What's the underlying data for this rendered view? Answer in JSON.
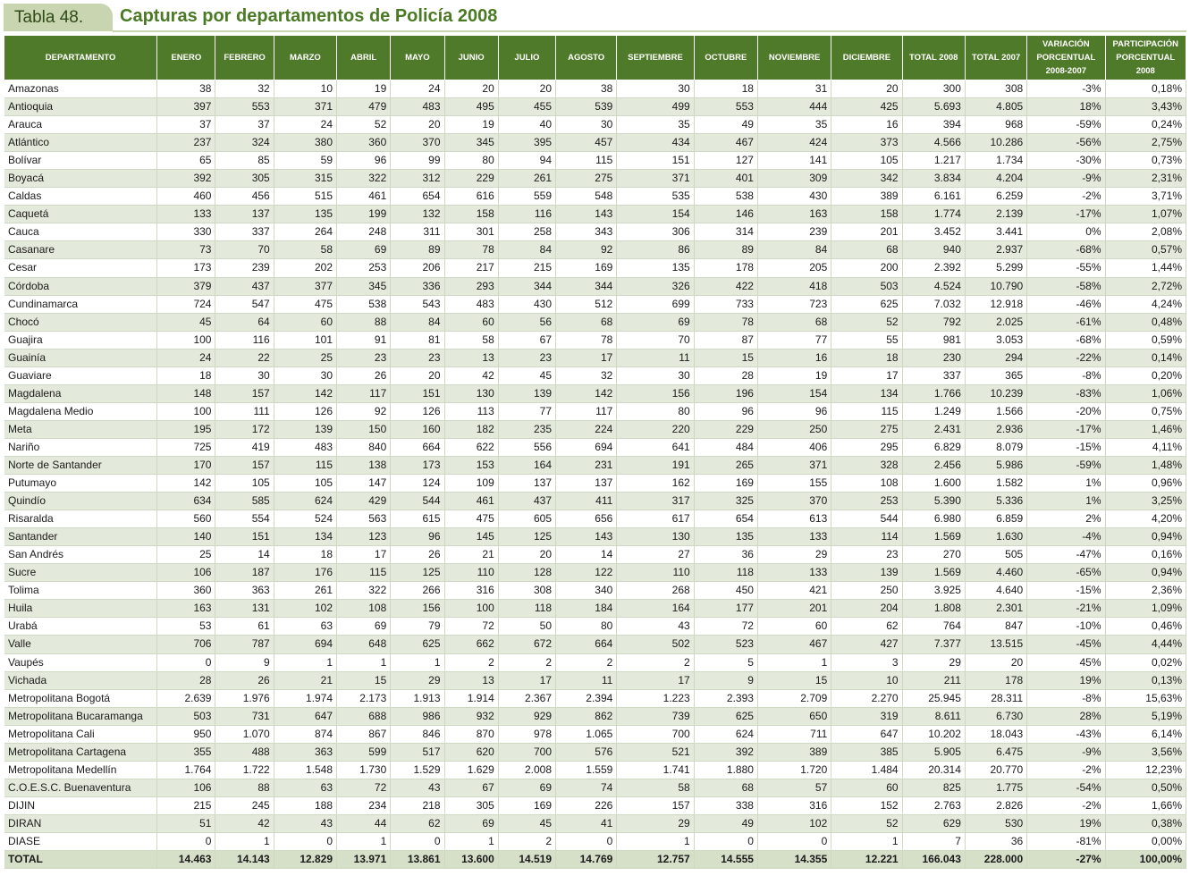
{
  "title": {
    "tag": "Tabla 48.",
    "text": "Capturas por departamentos de Policía 2008"
  },
  "columns": [
    "DEPARTAMENTO",
    "ENERO",
    "FEBRERO",
    "MARZO",
    "ABRIL",
    "MAYO",
    "JUNIO",
    "JULIO",
    "AGOSTO",
    "SEPTIEMBRE",
    "OCTUBRE",
    "NOVIEMBRE",
    "DICIEMBRE",
    "TOTAL 2008",
    "TOTAL 2007",
    "VARIACIÓN PORCENTUAL 2008-2007",
    "PARTICIPACIÓN PORCENTUAL 2008"
  ],
  "rows": [
    [
      "Amazonas",
      "38",
      "32",
      "10",
      "19",
      "24",
      "20",
      "20",
      "38",
      "30",
      "18",
      "31",
      "20",
      "300",
      "308",
      "-3%",
      "0,18%"
    ],
    [
      "Antioquia",
      "397",
      "553",
      "371",
      "479",
      "483",
      "495",
      "455",
      "539",
      "499",
      "553",
      "444",
      "425",
      "5.693",
      "4.805",
      "18%",
      "3,43%"
    ],
    [
      "Arauca",
      "37",
      "37",
      "24",
      "52",
      "20",
      "19",
      "40",
      "30",
      "35",
      "49",
      "35",
      "16",
      "394",
      "968",
      "-59%",
      "0,24%"
    ],
    [
      "Atlántico",
      "237",
      "324",
      "380",
      "360",
      "370",
      "345",
      "395",
      "457",
      "434",
      "467",
      "424",
      "373",
      "4.566",
      "10.286",
      "-56%",
      "2,75%"
    ],
    [
      "Bolívar",
      "65",
      "85",
      "59",
      "96",
      "99",
      "80",
      "94",
      "115",
      "151",
      "127",
      "141",
      "105",
      "1.217",
      "1.734",
      "-30%",
      "0,73%"
    ],
    [
      "Boyacá",
      "392",
      "305",
      "315",
      "322",
      "312",
      "229",
      "261",
      "275",
      "371",
      "401",
      "309",
      "342",
      "3.834",
      "4.204",
      "-9%",
      "2,31%"
    ],
    [
      "Caldas",
      "460",
      "456",
      "515",
      "461",
      "654",
      "616",
      "559",
      "548",
      "535",
      "538",
      "430",
      "389",
      "6.161",
      "6.259",
      "-2%",
      "3,71%"
    ],
    [
      "Caquetá",
      "133",
      "137",
      "135",
      "199",
      "132",
      "158",
      "116",
      "143",
      "154",
      "146",
      "163",
      "158",
      "1.774",
      "2.139",
      "-17%",
      "1,07%"
    ],
    [
      "Cauca",
      "330",
      "337",
      "264",
      "248",
      "311",
      "301",
      "258",
      "343",
      "306",
      "314",
      "239",
      "201",
      "3.452",
      "3.441",
      "0%",
      "2,08%"
    ],
    [
      "Casanare",
      "73",
      "70",
      "58",
      "69",
      "89",
      "78",
      "84",
      "92",
      "86",
      "89",
      "84",
      "68",
      "940",
      "2.937",
      "-68%",
      "0,57%"
    ],
    [
      "Cesar",
      "173",
      "239",
      "202",
      "253",
      "206",
      "217",
      "215",
      "169",
      "135",
      "178",
      "205",
      "200",
      "2.392",
      "5.299",
      "-55%",
      "1,44%"
    ],
    [
      "Córdoba",
      "379",
      "437",
      "377",
      "345",
      "336",
      "293",
      "344",
      "344",
      "326",
      "422",
      "418",
      "503",
      "4.524",
      "10.790",
      "-58%",
      "2,72%"
    ],
    [
      "Cundinamarca",
      "724",
      "547",
      "475",
      "538",
      "543",
      "483",
      "430",
      "512",
      "699",
      "733",
      "723",
      "625",
      "7.032",
      "12.918",
      "-46%",
      "4,24%"
    ],
    [
      "Chocó",
      "45",
      "64",
      "60",
      "88",
      "84",
      "60",
      "56",
      "68",
      "69",
      "78",
      "68",
      "52",
      "792",
      "2.025",
      "-61%",
      "0,48%"
    ],
    [
      "Guajira",
      "100",
      "116",
      "101",
      "91",
      "81",
      "58",
      "67",
      "78",
      "70",
      "87",
      "77",
      "55",
      "981",
      "3.053",
      "-68%",
      "0,59%"
    ],
    [
      "Guainía",
      "24",
      "22",
      "25",
      "23",
      "23",
      "13",
      "23",
      "17",
      "11",
      "15",
      "16",
      "18",
      "230",
      "294",
      "-22%",
      "0,14%"
    ],
    [
      "Guaviare",
      "18",
      "30",
      "30",
      "26",
      "20",
      "42",
      "45",
      "32",
      "30",
      "28",
      "19",
      "17",
      "337",
      "365",
      "-8%",
      "0,20%"
    ],
    [
      "Magdalena",
      "148",
      "157",
      "142",
      "117",
      "151",
      "130",
      "139",
      "142",
      "156",
      "196",
      "154",
      "134",
      "1.766",
      "10.239",
      "-83%",
      "1,06%"
    ],
    [
      "Magdalena Medio",
      "100",
      "111",
      "126",
      "92",
      "126",
      "113",
      "77",
      "117",
      "80",
      "96",
      "96",
      "115",
      "1.249",
      "1.566",
      "-20%",
      "0,75%"
    ],
    [
      "Meta",
      "195",
      "172",
      "139",
      "150",
      "160",
      "182",
      "235",
      "224",
      "220",
      "229",
      "250",
      "275",
      "2.431",
      "2.936",
      "-17%",
      "1,46%"
    ],
    [
      "Nariño",
      "725",
      "419",
      "483",
      "840",
      "664",
      "622",
      "556",
      "694",
      "641",
      "484",
      "406",
      "295",
      "6.829",
      "8.079",
      "-15%",
      "4,11%"
    ],
    [
      "Norte de Santander",
      "170",
      "157",
      "115",
      "138",
      "173",
      "153",
      "164",
      "231",
      "191",
      "265",
      "371",
      "328",
      "2.456",
      "5.986",
      "-59%",
      "1,48%"
    ],
    [
      "Putumayo",
      "142",
      "105",
      "105",
      "147",
      "124",
      "109",
      "137",
      "137",
      "162",
      "169",
      "155",
      "108",
      "1.600",
      "1.582",
      "1%",
      "0,96%"
    ],
    [
      "Quindío",
      "634",
      "585",
      "624",
      "429",
      "544",
      "461",
      "437",
      "411",
      "317",
      "325",
      "370",
      "253",
      "5.390",
      "5.336",
      "1%",
      "3,25%"
    ],
    [
      "Risaralda",
      "560",
      "554",
      "524",
      "563",
      "615",
      "475",
      "605",
      "656",
      "617",
      "654",
      "613",
      "544",
      "6.980",
      "6.859",
      "2%",
      "4,20%"
    ],
    [
      "Santander",
      "140",
      "151",
      "134",
      "123",
      "96",
      "145",
      "125",
      "143",
      "130",
      "135",
      "133",
      "114",
      "1.569",
      "1.630",
      "-4%",
      "0,94%"
    ],
    [
      "San Andrés",
      "25",
      "14",
      "18",
      "17",
      "26",
      "21",
      "20",
      "14",
      "27",
      "36",
      "29",
      "23",
      "270",
      "505",
      "-47%",
      "0,16%"
    ],
    [
      "Sucre",
      "106",
      "187",
      "176",
      "115",
      "125",
      "110",
      "128",
      "122",
      "110",
      "118",
      "133",
      "139",
      "1.569",
      "4.460",
      "-65%",
      "0,94%"
    ],
    [
      "Tolima",
      "360",
      "363",
      "261",
      "322",
      "266",
      "316",
      "308",
      "340",
      "268",
      "450",
      "421",
      "250",
      "3.925",
      "4.640",
      "-15%",
      "2,36%"
    ],
    [
      "Huila",
      "163",
      "131",
      "102",
      "108",
      "156",
      "100",
      "118",
      "184",
      "164",
      "177",
      "201",
      "204",
      "1.808",
      "2.301",
      "-21%",
      "1,09%"
    ],
    [
      "Urabá",
      "53",
      "61",
      "63",
      "69",
      "79",
      "72",
      "50",
      "80",
      "43",
      "72",
      "60",
      "62",
      "764",
      "847",
      "-10%",
      "0,46%"
    ],
    [
      "Valle",
      "706",
      "787",
      "694",
      "648",
      "625",
      "662",
      "672",
      "664",
      "502",
      "523",
      "467",
      "427",
      "7.377",
      "13.515",
      "-45%",
      "4,44%"
    ],
    [
      "Vaupés",
      "0",
      "9",
      "1",
      "1",
      "1",
      "2",
      "2",
      "2",
      "2",
      "5",
      "1",
      "3",
      "29",
      "20",
      "45%",
      "0,02%"
    ],
    [
      "Vichada",
      "28",
      "26",
      "21",
      "15",
      "29",
      "13",
      "17",
      "11",
      "17",
      "9",
      "15",
      "10",
      "211",
      "178",
      "19%",
      "0,13%"
    ],
    [
      "Metropolitana Bogotá",
      "2.639",
      "1.976",
      "1.974",
      "2.173",
      "1.913",
      "1.914",
      "2.367",
      "2.394",
      "1.223",
      "2.393",
      "2.709",
      "2.270",
      "25.945",
      "28.311",
      "-8%",
      "15,63%"
    ],
    [
      "Metropolitana Bucaramanga",
      "503",
      "731",
      "647",
      "688",
      "986",
      "932",
      "929",
      "862",
      "739",
      "625",
      "650",
      "319",
      "8.611",
      "6.730",
      "28%",
      "5,19%"
    ],
    [
      "Metropolitana Cali",
      "950",
      "1.070",
      "874",
      "867",
      "846",
      "870",
      "978",
      "1.065",
      "700",
      "624",
      "711",
      "647",
      "10.202",
      "18.043",
      "-43%",
      "6,14%"
    ],
    [
      "Metropolitana Cartagena",
      "355",
      "488",
      "363",
      "599",
      "517",
      "620",
      "700",
      "576",
      "521",
      "392",
      "389",
      "385",
      "5.905",
      "6.475",
      "-9%",
      "3,56%"
    ],
    [
      "Metropolitana Medellín",
      "1.764",
      "1.722",
      "1.548",
      "1.730",
      "1.529",
      "1.629",
      "2.008",
      "1.559",
      "1.741",
      "1.880",
      "1.720",
      "1.484",
      "20.314",
      "20.770",
      "-2%",
      "12,23%"
    ],
    [
      "C.O.E.S.C. Buenaventura",
      "106",
      "88",
      "63",
      "72",
      "43",
      "67",
      "69",
      "74",
      "58",
      "68",
      "57",
      "60",
      "825",
      "1.775",
      "-54%",
      "0,50%"
    ],
    [
      "DIJIN",
      "215",
      "245",
      "188",
      "234",
      "218",
      "305",
      "169",
      "226",
      "157",
      "338",
      "316",
      "152",
      "2.763",
      "2.826",
      "-2%",
      "1,66%"
    ],
    [
      "DIRAN",
      "51",
      "42",
      "43",
      "44",
      "62",
      "69",
      "45",
      "41",
      "29",
      "49",
      "102",
      "52",
      "629",
      "530",
      "19%",
      "0,38%"
    ],
    [
      "DIASE",
      "0",
      "1",
      "0",
      "1",
      "0",
      "1",
      "2",
      "0",
      "1",
      "0",
      "0",
      "1",
      "7",
      "36",
      "-81%",
      "0,00%"
    ]
  ],
  "total": [
    "TOTAL",
    "14.463",
    "14.143",
    "12.829",
    "13.971",
    "13.861",
    "13.600",
    "14.519",
    "14.769",
    "12.757",
    "14.555",
    "14.355",
    "12.221",
    "166.043",
    "228.000",
    "-27%",
    "100,00%"
  ]
}
